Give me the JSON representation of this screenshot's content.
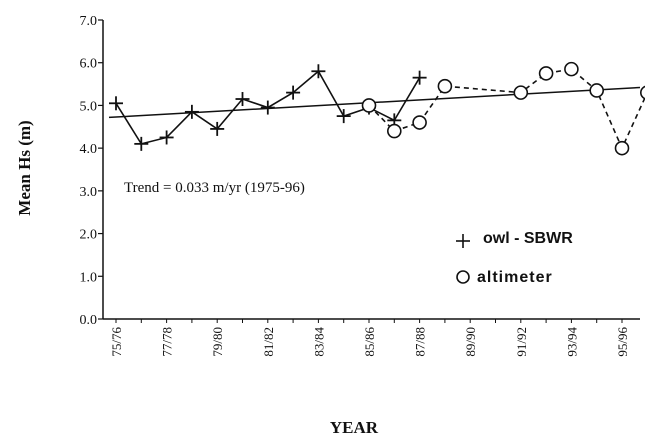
{
  "chart_data": {
    "type": "line",
    "xlabel": "YEAR",
    "ylabel": "Mean Hs (m)",
    "ylim": [
      0,
      7
    ],
    "yticks": [
      "0.0",
      "1.0",
      "2.0",
      "3.0",
      "4.0",
      "5.0",
      "6.0",
      "7.0"
    ],
    "xtick_labels": [
      "75/76",
      "77/78",
      "79/80",
      "81/82",
      "83/84",
      "85/86",
      "87/88",
      "89/90",
      "91/92",
      "93/94",
      "95/96"
    ],
    "annotation": "Trend = 0.033 m/yr (1975-96)",
    "trend": {
      "start": 4.72,
      "end": 5.42
    },
    "series": [
      {
        "name": "owl - SBWR",
        "marker": "plus",
        "line": "solid",
        "points": [
          [
            0,
            5.05
          ],
          [
            1,
            4.1
          ],
          [
            2,
            4.25
          ],
          [
            3,
            4.85
          ],
          [
            4,
            4.45
          ],
          [
            5,
            5.15
          ],
          [
            6,
            4.95
          ],
          [
            7,
            5.3
          ],
          [
            8,
            5.8
          ],
          [
            9,
            4.75
          ],
          [
            10,
            4.95
          ],
          [
            11,
            4.65
          ],
          [
            12,
            5.65
          ]
        ]
      },
      {
        "name": "altimeter",
        "marker": "circle",
        "line": "dashed",
        "points": [
          [
            10,
            5.0
          ],
          [
            11,
            4.4
          ],
          [
            12,
            4.6
          ],
          [
            13,
            5.45
          ],
          [
            16,
            5.3
          ],
          [
            17,
            5.75
          ],
          [
            18,
            5.85
          ],
          [
            19,
            5.35
          ],
          [
            20,
            4.0
          ],
          [
            21,
            5.3
          ]
        ]
      }
    ],
    "legend_position": "lower-right"
  }
}
